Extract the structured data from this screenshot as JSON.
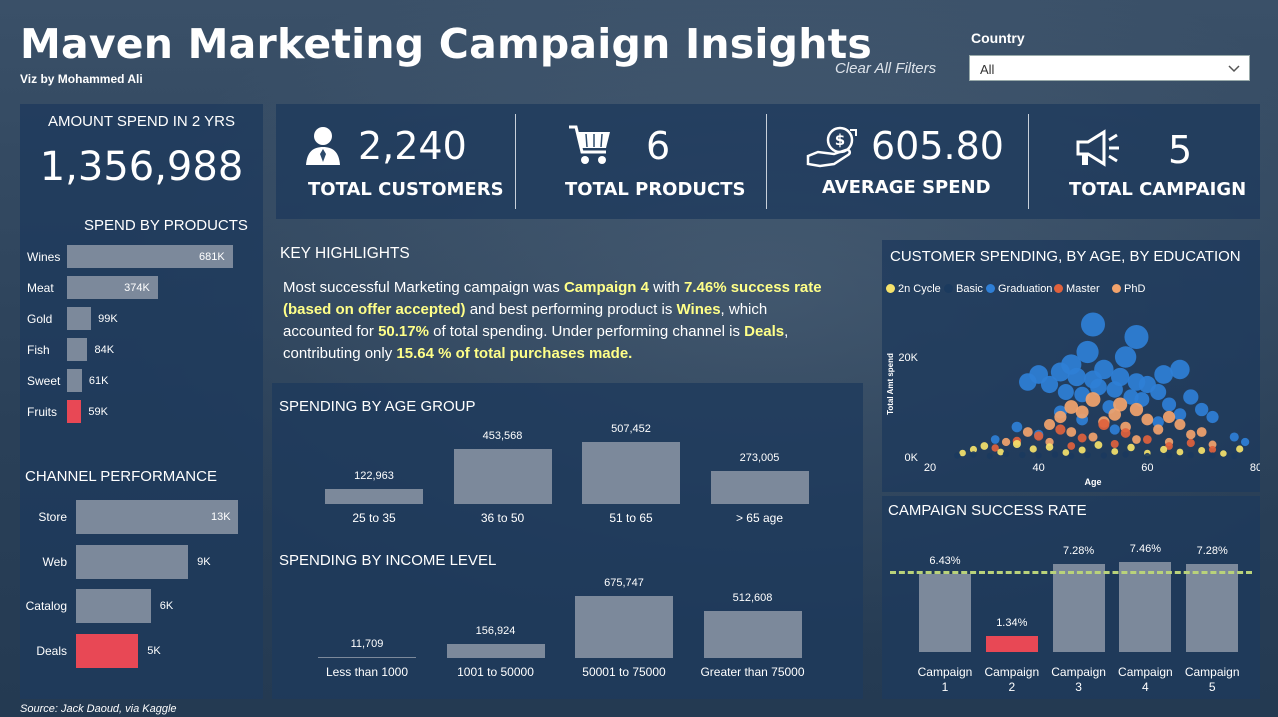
{
  "header": {
    "title": "Maven Marketing Campaign Insights",
    "subtitle": "Viz by Mohammed Ali",
    "clear_filters": "Clear All Filters",
    "country_label": "Country",
    "country_value": "All"
  },
  "left_panel": {
    "amount_label": "AMOUNT SPEND IN 2 YRS",
    "amount_value": "1,356,988",
    "products_title": "SPEND BY PRODUCTS",
    "products": [
      {
        "name": "Wines",
        "value": 681,
        "label": "681K"
      },
      {
        "name": "Meat",
        "value": 374,
        "label": "374K"
      },
      {
        "name": "Gold",
        "value": 99,
        "label": "99K"
      },
      {
        "name": "Fish",
        "value": 84,
        "label": "84K"
      },
      {
        "name": "Sweet",
        "value": 61,
        "label": "61K"
      },
      {
        "name": "Fruits",
        "value": 59,
        "label": "59K"
      }
    ],
    "channel_title": "CHANNEL PERFORMANCE",
    "channels": [
      {
        "name": "Store",
        "value": 13,
        "label": "13K"
      },
      {
        "name": "Web",
        "value": 9,
        "label": "9K"
      },
      {
        "name": "Catalog",
        "value": 6,
        "label": "6K"
      },
      {
        "name": "Deals",
        "value": 5,
        "label": "5K"
      }
    ],
    "source": "Source: Jack Daoud, via Kaggle"
  },
  "kpis": [
    {
      "value": "2,240",
      "label": "TOTAL CUSTOMERS",
      "icon": "user-icon"
    },
    {
      "value": "6",
      "label": "TOTAL PRODUCTS",
      "icon": "cart-icon"
    },
    {
      "value": "605.80",
      "label": "AVERAGE SPEND",
      "icon": "money-hand-icon"
    },
    {
      "value": "5",
      "label": "TOTAL CAMPAIGN",
      "icon": "megaphone-icon"
    }
  ],
  "highlights": {
    "title": "KEY HIGHLIGHTS",
    "t1": "Most successful Marketing campaign was ",
    "h1": "Campaign 4",
    "t2": " with ",
    "h2": "7.46% success rate",
    "h3": "(based on offer accepted)",
    "t3": " and best performing product is ",
    "h4": "Wines",
    "t4": ", which",
    "t5": "accounted for  ",
    "h5": "50.17%",
    "t6": " of total spending. Under performing channel is ",
    "h6": "Deals",
    "t7": ",",
    "t8": "contributing only ",
    "h7": "15.64 % of total purchases made."
  },
  "chart_data": [
    {
      "type": "bar",
      "title": "SPENDING BY AGE GROUP",
      "categories": [
        "25 to 35",
        "36 to 50",
        "51 to 65",
        "> 65 age"
      ],
      "values": [
        122963,
        453568,
        507452,
        273005
      ],
      "labels": [
        "122,963",
        "453,568",
        "507,452",
        "273,005"
      ]
    },
    {
      "type": "bar",
      "title": "SPENDING BY INCOME LEVEL",
      "categories": [
        "Less than 1000",
        "1001 to 50000",
        "50001 to 75000",
        "Greater than 75000"
      ],
      "values": [
        11709,
        156924,
        675747,
        512608
      ],
      "labels": [
        "11,709",
        "156,924",
        "675,747",
        "512,608"
      ]
    },
    {
      "type": "scatter",
      "title": "CUSTOMER SPENDING, BY AGE, BY EDUCATION",
      "xlabel": "Age",
      "ylabel": "Total Amt spend",
      "xticks": [
        "20",
        "40",
        "60",
        "80"
      ],
      "yticks": [
        "0K",
        "20K"
      ],
      "xlim": [
        20,
        80
      ],
      "ylim": [
        0,
        28000
      ],
      "legend": [
        {
          "name": "2n Cycle",
          "color": "#f5e26b"
        },
        {
          "name": "Basic",
          "color": "#1b3a5e"
        },
        {
          "name": "Graduation",
          "color": "#2f7fd6"
        },
        {
          "name": "Master",
          "color": "#e0623d"
        },
        {
          "name": "PhD",
          "color": "#f2a36c"
        }
      ],
      "series": [
        {
          "name": "Graduation",
          "points": [
            [
              38,
              15000
            ],
            [
              40,
              16500
            ],
            [
              42,
              14500
            ],
            [
              44,
              17000
            ],
            [
              45,
              13000
            ],
            [
              46,
              18500
            ],
            [
              47,
              16000
            ],
            [
              48,
              12500
            ],
            [
              49,
              21000
            ],
            [
              50,
              15500
            ],
            [
              51,
              14000
            ],
            [
              52,
              17500
            ],
            [
              53,
              10000
            ],
            [
              54,
              13500
            ],
            [
              55,
              16000
            ],
            [
              56,
              20000
            ],
            [
              57,
              12000
            ],
            [
              58,
              15000
            ],
            [
              59,
              11500
            ],
            [
              60,
              14500
            ],
            [
              62,
              13000
            ],
            [
              63,
              16500
            ],
            [
              64,
              10500
            ],
            [
              66,
              17500
            ],
            [
              68,
              12000
            ],
            [
              70,
              9500
            ],
            [
              72,
              8000
            ],
            [
              50,
              26500
            ],
            [
              44,
              9000
            ],
            [
              62,
              7000
            ],
            [
              36,
              6000
            ],
            [
              58,
              24000
            ],
            [
              66,
              8500
            ],
            [
              76,
              4000
            ],
            [
              78,
              3000
            ],
            [
              32,
              3500
            ],
            [
              40,
              4500
            ],
            [
              54,
              5500
            ],
            [
              48,
              7500
            ]
          ]
        },
        {
          "name": "PhD",
          "points": [
            [
              34,
              3000
            ],
            [
              38,
              5000
            ],
            [
              42,
              6500
            ],
            [
              44,
              8000
            ],
            [
              46,
              10000
            ],
            [
              48,
              9000
            ],
            [
              50,
              11500
            ],
            [
              52,
              7000
            ],
            [
              54,
              8500
            ],
            [
              55,
              10500
            ],
            [
              56,
              6000
            ],
            [
              58,
              9500
            ],
            [
              60,
              7500
            ],
            [
              62,
              5500
            ],
            [
              64,
              8000
            ],
            [
              66,
              6500
            ],
            [
              68,
              4500
            ],
            [
              70,
              5000
            ],
            [
              46,
              5000
            ],
            [
              50,
              4000
            ],
            [
              42,
              3000
            ],
            [
              58,
              3500
            ],
            [
              64,
              3000
            ],
            [
              72,
              2500
            ]
          ]
        },
        {
          "name": "Master",
          "points": [
            [
              32,
              1800
            ],
            [
              36,
              3200
            ],
            [
              40,
              4200
            ],
            [
              44,
              5500
            ],
            [
              48,
              3800
            ],
            [
              52,
              6500
            ],
            [
              54,
              2600
            ],
            [
              56,
              4800
            ],
            [
              60,
              3500
            ],
            [
              64,
              2200
            ],
            [
              68,
              2800
            ],
            [
              72,
              1500
            ],
            [
              46,
              2200
            ]
          ]
        },
        {
          "name": "2n Cycle",
          "points": [
            [
              26,
              800
            ],
            [
              28,
              1500
            ],
            [
              30,
              2200
            ],
            [
              33,
              1000
            ],
            [
              36,
              2600
            ],
            [
              39,
              1600
            ],
            [
              42,
              2000
            ],
            [
              45,
              900
            ],
            [
              48,
              1400
            ],
            [
              51,
              2400
            ],
            [
              54,
              1100
            ],
            [
              57,
              1900
            ],
            [
              60,
              800
            ],
            [
              63,
              1500
            ],
            [
              66,
              1000
            ],
            [
              70,
              1300
            ],
            [
              74,
              700
            ],
            [
              77,
              1600
            ]
          ]
        },
        {
          "name": "Basic",
          "points": [
            [
              25,
              300
            ],
            [
              28,
              500
            ],
            [
              31,
              200
            ],
            [
              34,
              600
            ],
            [
              37,
              400
            ],
            [
              40,
              300
            ],
            [
              43,
              500
            ],
            [
              46,
              200
            ],
            [
              49,
              400
            ],
            [
              52,
              300
            ],
            [
              56,
              500
            ],
            [
              60,
              200
            ],
            [
              64,
              300
            ],
            [
              68,
              400
            ],
            [
              72,
              300
            ],
            [
              76,
              200
            ]
          ]
        }
      ]
    },
    {
      "type": "bar",
      "title": "CAMPAIGN SUCCESS RATE",
      "categories": [
        "Campaign 1",
        "Campaign 2",
        "Campaign 3",
        "Campaign 4",
        "Campaign 5"
      ],
      "values": [
        6.43,
        1.34,
        7.28,
        7.46,
        7.28
      ],
      "labels": [
        "6.43%",
        "1.34%",
        "7.28%",
        "7.46%",
        "7.28%"
      ],
      "cat_line1": [
        "Campaign",
        "Campaign",
        "Campaign",
        "Campaign",
        "Campaign"
      ],
      "cat_line2": [
        "1",
        "2",
        "3",
        "4",
        "5"
      ],
      "highlight_color": "#e84855"
    }
  ],
  "colors": {
    "bar": "#7c899b",
    "accent_red": "#e84855",
    "highlight": "#ffff88",
    "avg_line": "#b9d27a"
  }
}
